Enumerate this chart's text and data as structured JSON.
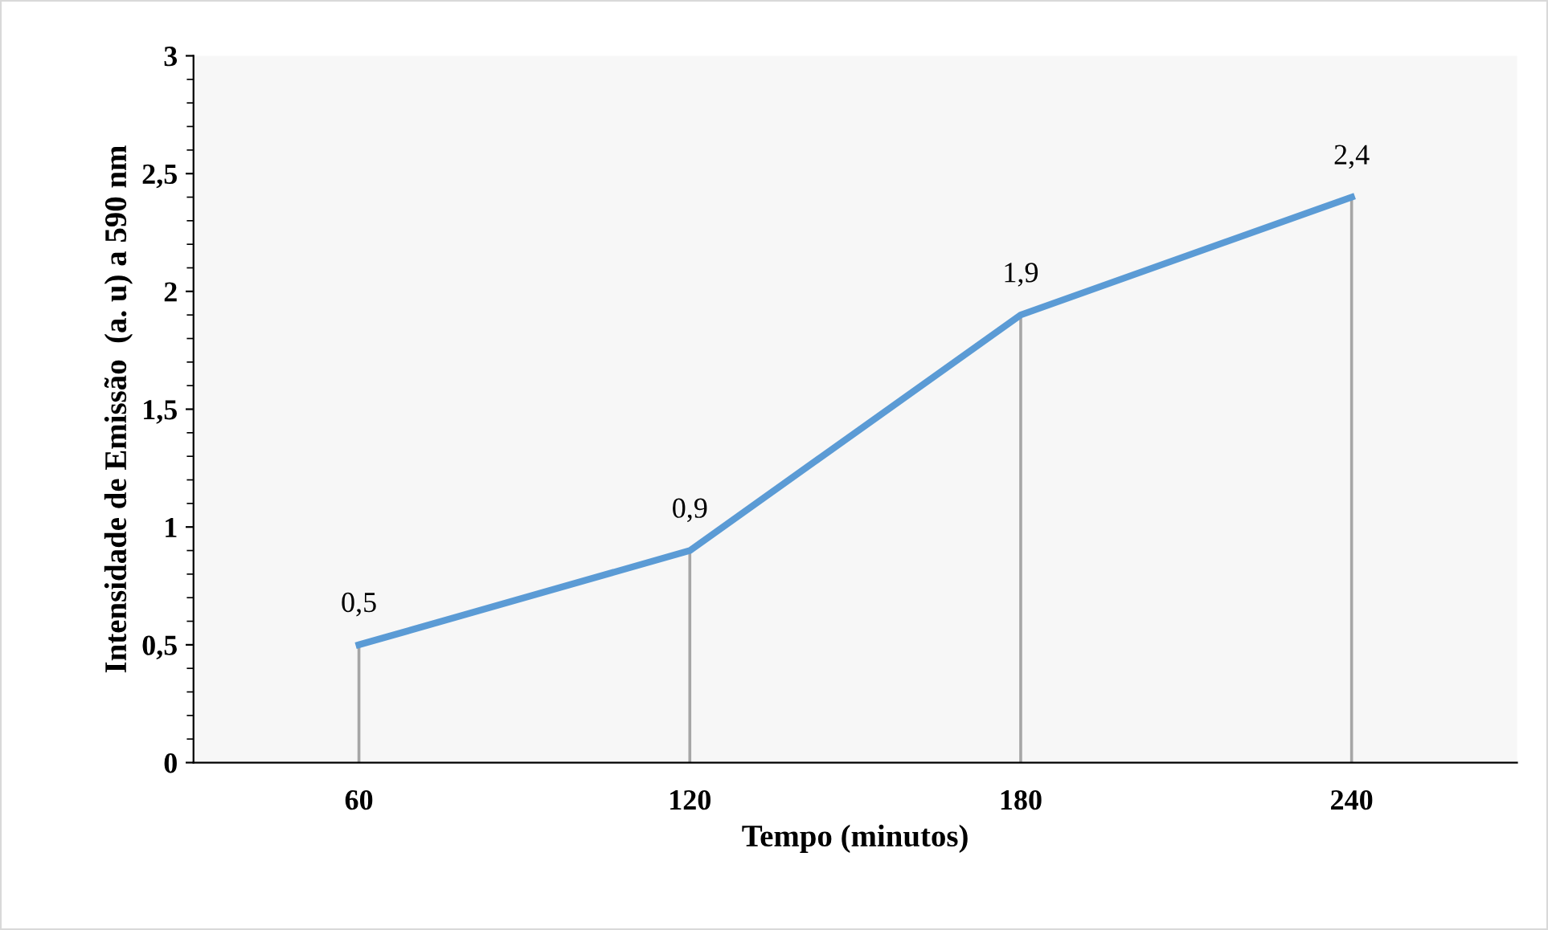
{
  "chart_data": {
    "type": "line",
    "xlabel": "Tempo (minutos)",
    "ylabel": "Intensidade de Emissão  (a. u) a 590 nm",
    "categories": [
      "60",
      "120",
      "180",
      "240"
    ],
    "series": [
      {
        "color": "#5b9bd5",
        "values": [
          0.5,
          0.9,
          1.9,
          2.4
        ],
        "value_labels": [
          "0,5",
          "0,9",
          "1,9",
          "2,4"
        ]
      }
    ],
    "ylim": [
      0,
      3
    ],
    "yticks": [
      0,
      {
        "value": 0.5,
        "label": "0,5"
      },
      1,
      {
        "value": 1.5,
        "label": "1,5"
      },
      2,
      {
        "value": 2.5,
        "label": "2,5"
      },
      3
    ],
    "marker": "none",
    "line_style": "solid"
  }
}
